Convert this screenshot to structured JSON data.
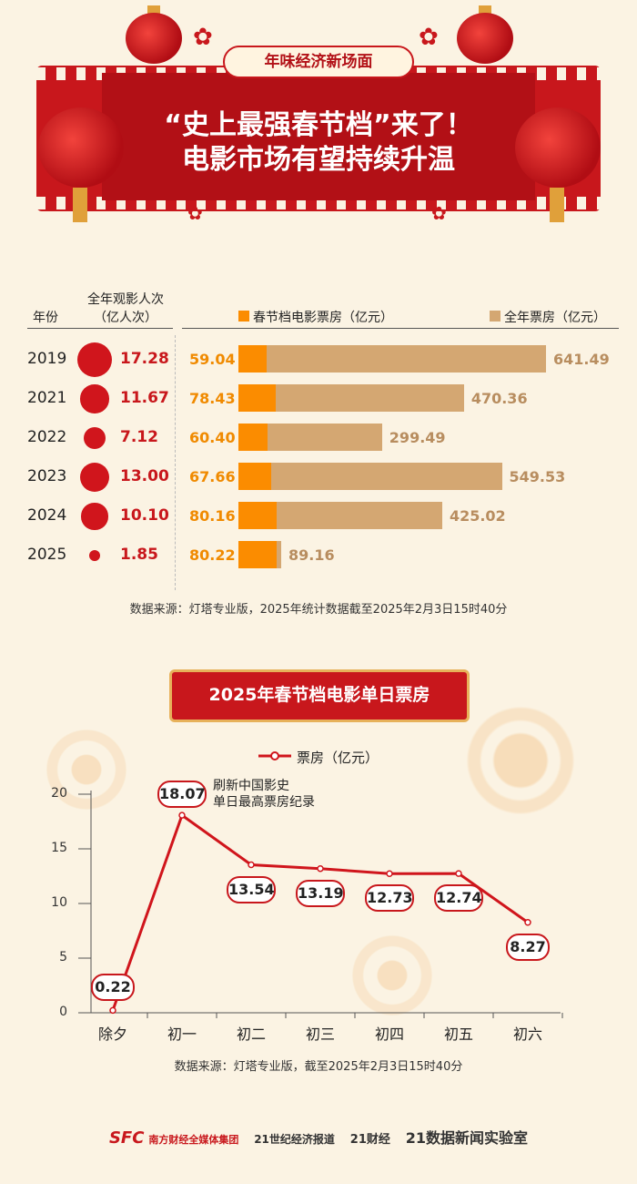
{
  "header": {
    "tag": "年味经济新场面",
    "title_line1": "“史上最强春节档”来了！",
    "title_line2": "电影市场有望持续升温"
  },
  "table": {
    "col_year": "年份",
    "col_viewers_line1": "全年观影人次",
    "col_viewers_line2": "（亿人次）",
    "legend_spring": "春节档电影票房（亿元）",
    "legend_total": "全年票房（亿元）",
    "rows": [
      {
        "year": "2019",
        "viewers": "17.28",
        "spring": "59.04",
        "total": "641.49"
      },
      {
        "year": "2021",
        "viewers": "11.67",
        "spring": "78.43",
        "total": "470.36"
      },
      {
        "year": "2022",
        "viewers": "7.12",
        "spring": "60.40",
        "total": "299.49"
      },
      {
        "year": "2023",
        "viewers": "13.00",
        "spring": "67.66",
        "total": "549.53"
      },
      {
        "year": "2024",
        "viewers": "10.10",
        "spring": "80.16",
        "total": "425.02"
      },
      {
        "year": "2025",
        "viewers": "1.85",
        "spring": "80.22",
        "total": "89.16"
      }
    ],
    "source": "数据来源：灯塔专业版，2025年统计数据截至2025年2月3日15时40分"
  },
  "chart_data": [
    {
      "type": "table",
      "title": "",
      "categories": [
        "2019",
        "2021",
        "2022",
        "2023",
        "2024",
        "2025"
      ],
      "series": [
        {
          "name": "全年观影人次（亿人次）",
          "values": [
            17.28,
            11.67,
            7.12,
            13.0,
            10.1,
            1.85
          ]
        },
        {
          "name": "春节档电影票房（亿元）",
          "values": [
            59.04,
            78.43,
            60.4,
            67.66,
            80.16,
            80.22
          ]
        },
        {
          "name": "全年票房（亿元）",
          "values": [
            641.49,
            470.36,
            299.49,
            549.53,
            425.02,
            89.16
          ]
        }
      ]
    },
    {
      "type": "line",
      "title": "2025年春节档电影单日票房",
      "legend": "票房（亿元）",
      "categories": [
        "除夕",
        "初一",
        "初二",
        "初三",
        "初四",
        "初五",
        "初六"
      ],
      "values": [
        0.22,
        18.07,
        13.54,
        13.19,
        12.73,
        12.74,
        8.27
      ],
      "value_labels": [
        "0.22",
        "18.07",
        "13.54",
        "13.19",
        "12.73",
        "12.74",
        "8.27"
      ],
      "yticks": [
        "0",
        "5",
        "10",
        "15",
        "20"
      ],
      "ylim": [
        0,
        20
      ],
      "annotation_line1": "刷新中国影史",
      "annotation_line2": "单日最高票房纪录",
      "source": "数据来源：灯塔专业版，截至2025年2月3日15时40分"
    }
  ],
  "footer": {
    "logo1": "SFC",
    "logo1_name": "南方财经全媒体集团",
    "logo2": "21世纪经济报道",
    "logo3": "21财经",
    "logo4": "21数据新闻实验室"
  },
  "colors": {
    "red": "#c8171c",
    "orange": "#fb8c00",
    "tan": "#d4a772"
  }
}
